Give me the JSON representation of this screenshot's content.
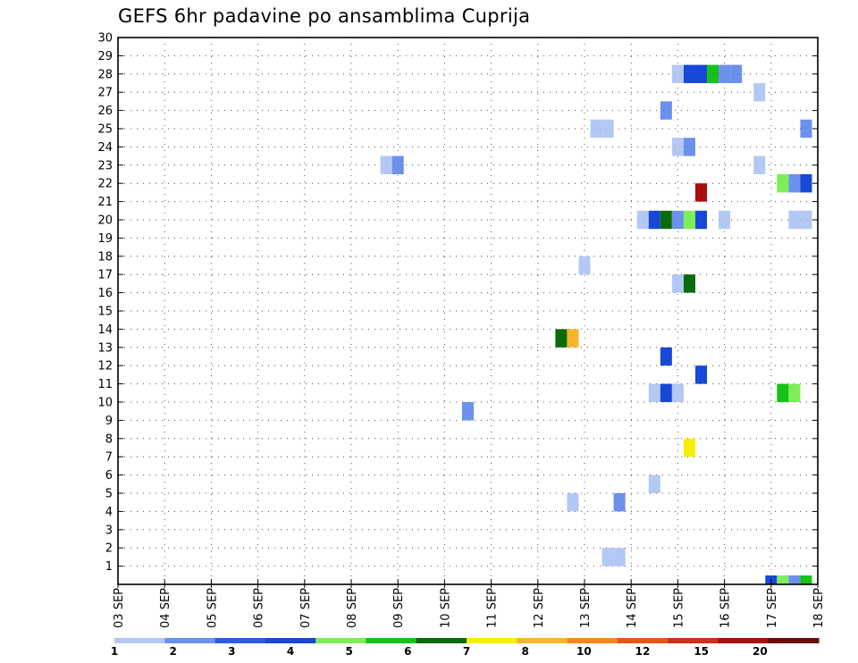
{
  "chart_data": {
    "type": "heatmap",
    "title": "GEFS 6hr padavine po ansamblima Cuprija",
    "xlabel": "",
    "ylabel": "",
    "x_tick_labels": [
      "03 SEP",
      "04 SEP",
      "05 SEP",
      "06 SEP",
      "07 SEP",
      "08 SEP",
      "09 SEP",
      "10 SEP",
      "11 SEP",
      "12 SEP",
      "13 SEP",
      "14 SEP",
      "15 SEP",
      "16 SEP",
      "17 SEP",
      "18 SEP"
    ],
    "y_tick_labels": [
      "1",
      "2",
      "3",
      "4",
      "5",
      "6",
      "7",
      "8",
      "9",
      "10",
      "11",
      "12",
      "13",
      "14",
      "15",
      "16",
      "17",
      "18",
      "19",
      "20",
      "21",
      "22",
      "23",
      "24",
      "25",
      "26",
      "27",
      "28",
      "29",
      "30"
    ],
    "xlim_days": [
      3,
      18
    ],
    "ylim": [
      0,
      30
    ],
    "grid": true,
    "colorscale": {
      "colors": [
        "#b4c8f4",
        "#6b91ec",
        "#2e5ce3",
        "#1748d8",
        "#7eee58",
        "#14c21a",
        "#0a6b0a",
        "#f7ef00",
        "#f7b52b",
        "#f6861b",
        "#e8551a",
        "#d22d19",
        "#a81010",
        "#6b0a0a"
      ],
      "labels": [
        "1",
        "2",
        "3",
        "4",
        "5",
        "6",
        "7",
        "8",
        "10",
        "12",
        "15",
        "20"
      ]
    },
    "cells": [
      {
        "member": 28,
        "day": 15.0,
        "color": "#b4c8f4"
      },
      {
        "member": 28,
        "day": 15.25,
        "color": "#1748d8"
      },
      {
        "member": 28,
        "day": 15.5,
        "color": "#1748d8"
      },
      {
        "member": 28,
        "day": 15.75,
        "color": "#14c21a"
      },
      {
        "member": 28,
        "day": 16.0,
        "color": "#6b91ec"
      },
      {
        "member": 28,
        "day": 16.25,
        "color": "#6b91ec"
      },
      {
        "member": 27,
        "day": 16.75,
        "color": "#b4c8f4"
      },
      {
        "member": 26,
        "day": 14.75,
        "color": "#6b91ec"
      },
      {
        "member": 25,
        "day": 13.25,
        "color": "#b4c8f4"
      },
      {
        "member": 25,
        "day": 13.5,
        "color": "#b4c8f4"
      },
      {
        "member": 25,
        "day": 17.75,
        "color": "#6b91ec"
      },
      {
        "member": 24,
        "day": 15.0,
        "color": "#b4c8f4"
      },
      {
        "member": 24,
        "day": 15.25,
        "color": "#6b91ec"
      },
      {
        "member": 23,
        "day": 8.75,
        "color": "#b4c8f4"
      },
      {
        "member": 23,
        "day": 9.0,
        "color": "#6b91ec"
      },
      {
        "member": 23,
        "day": 16.75,
        "color": "#b4c8f4"
      },
      {
        "member": 22,
        "day": 17.25,
        "color": "#7eee58"
      },
      {
        "member": 22,
        "day": 17.5,
        "color": "#6b91ec"
      },
      {
        "member": 22,
        "day": 17.75,
        "color": "#1748d8"
      },
      {
        "member": 21.5,
        "day": 15.5,
        "color": "#a81010"
      },
      {
        "member": 20,
        "day": 14.25,
        "color": "#b4c8f4"
      },
      {
        "member": 20,
        "day": 14.5,
        "color": "#1748d8"
      },
      {
        "member": 20,
        "day": 14.75,
        "color": "#0a6b0a"
      },
      {
        "member": 20,
        "day": 15.0,
        "color": "#6b91ec"
      },
      {
        "member": 20,
        "day": 15.25,
        "color": "#7eee58"
      },
      {
        "member": 20,
        "day": 15.5,
        "color": "#1748d8"
      },
      {
        "member": 20,
        "day": 16.0,
        "color": "#b4c8f4"
      },
      {
        "member": 20,
        "day": 17.5,
        "color": "#b4c8f4"
      },
      {
        "member": 20,
        "day": 17.75,
        "color": "#b4c8f4"
      },
      {
        "member": 17.5,
        "day": 13.0,
        "color": "#b4c8f4"
      },
      {
        "member": 16.5,
        "day": 15.0,
        "color": "#b4c8f4"
      },
      {
        "member": 16.5,
        "day": 15.25,
        "color": "#0a6b0a"
      },
      {
        "member": 13.5,
        "day": 12.5,
        "color": "#0a6b0a"
      },
      {
        "member": 13.5,
        "day": 12.75,
        "color": "#f7b52b"
      },
      {
        "member": 12.5,
        "day": 14.75,
        "color": "#1748d8"
      },
      {
        "member": 11.5,
        "day": 15.5,
        "color": "#1748d8"
      },
      {
        "member": 10.5,
        "day": 14.5,
        "color": "#b4c8f4"
      },
      {
        "member": 10.5,
        "day": 14.75,
        "color": "#1748d8"
      },
      {
        "member": 10.5,
        "day": 15.0,
        "color": "#b4c8f4"
      },
      {
        "member": 10.5,
        "day": 17.25,
        "color": "#14c21a"
      },
      {
        "member": 10.5,
        "day": 17.5,
        "color": "#7eee58"
      },
      {
        "member": 9.5,
        "day": 10.5,
        "color": "#6b91ec"
      },
      {
        "member": 7.5,
        "day": 15.25,
        "color": "#f7ef00"
      },
      {
        "member": 5.5,
        "day": 14.5,
        "color": "#b4c8f4"
      },
      {
        "member": 4.5,
        "day": 12.75,
        "color": "#b4c8f4"
      },
      {
        "member": 4.5,
        "day": 13.75,
        "color": "#6b91ec"
      },
      {
        "member": 1.5,
        "day": 13.5,
        "color": "#b4c8f4"
      },
      {
        "member": 1.5,
        "day": 13.75,
        "color": "#b4c8f4"
      },
      {
        "member": 0,
        "day": 17.0,
        "color": "#1748d8"
      },
      {
        "member": 0,
        "day": 17.25,
        "color": "#7eee58"
      },
      {
        "member": 0,
        "day": 17.5,
        "color": "#6b91ec"
      },
      {
        "member": 0,
        "day": 17.75,
        "color": "#14c21a"
      }
    ]
  }
}
